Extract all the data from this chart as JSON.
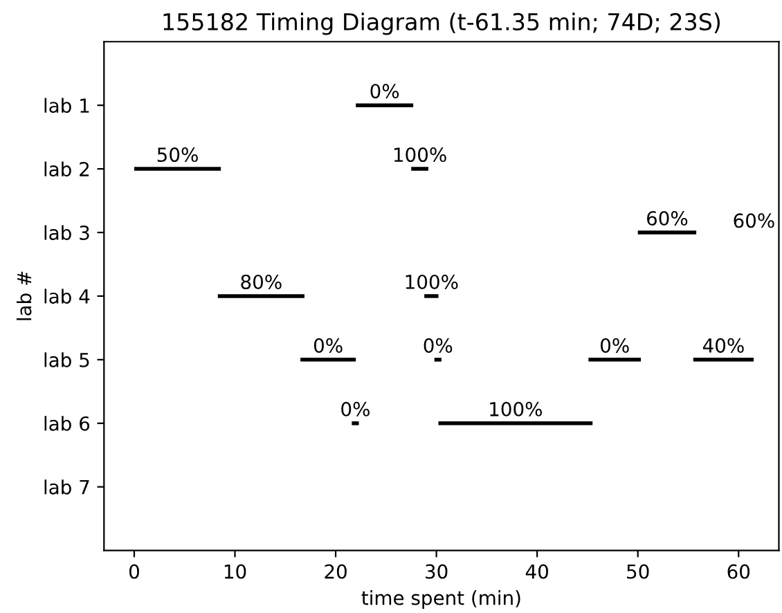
{
  "chart_data": {
    "type": "bar",
    "orientation": "horizontal",
    "title": "155182 Timing Diagram (t-61.35 min; 74D; 23S)",
    "xlabel": "time spent (min)",
    "ylabel": "lab #",
    "categories": [
      "lab 1",
      "lab 2",
      "lab 3",
      "lab 4",
      "lab 5",
      "lab 6",
      "lab 7"
    ],
    "series": [
      {
        "color": "#000000",
        "base": [
          22.0,
          0,
          50.0,
          8.3,
          16.5,
          21.6,
          null
        ],
        "values": [
          5.7,
          8.6,
          5.8,
          8.6,
          5.5,
          0.7,
          null
        ]
      },
      {
        "color": "#000000",
        "base": [
          null,
          27.5,
          null,
          28.8,
          29.8,
          30.2,
          null
        ],
        "values": [
          null,
          1.7,
          null,
          1.4,
          0.7,
          15.3,
          null
        ]
      },
      {
        "color": "#000000",
        "base": [
          null,
          null,
          null,
          null,
          45.1,
          null,
          null
        ],
        "values": [
          null,
          null,
          null,
          null,
          5.2,
          null,
          null
        ]
      },
      {
        "color": "#000000",
        "base": [
          null,
          null,
          null,
          null,
          55.5,
          null,
          null
        ],
        "values": [
          null,
          null,
          null,
          null,
          6.0,
          null,
          null
        ]
      }
    ],
    "annotations": [
      {
        "text": "0%",
        "x": 24.85,
        "y": "lab 1"
      },
      {
        "text": "50%",
        "x": 4.3,
        "y": "lab 2"
      },
      {
        "text": "100%",
        "x": 28.35,
        "y": "lab 2"
      },
      {
        "text": "60%",
        "x": 52.9,
        "y": "lab 3"
      },
      "60%",
      {
        "text": "80%",
        "x": 12.6,
        "y": "lab 4"
      },
      {
        "text": "100%",
        "x": 29.5,
        "y": "lab 4"
      },
      {
        "text": "0%",
        "x": 19.25,
        "y": "lab 5"
      },
      {
        "text": "0%",
        "x": 30.15,
        "y": "lab 5"
      },
      {
        "text": "0%",
        "x": 47.7,
        "y": "lab 5"
      },
      {
        "text": "40%",
        "x": 58.5,
        "y": "lab 5"
      },
      {
        "text": "0%",
        "x": 21.95,
        "y": "lab 6"
      },
      {
        "text": "100%",
        "x": 37.85,
        "y": "lab 6"
      }
    ],
    "xlim": [
      -3,
      64
    ],
    "xticks": [
      0,
      10,
      20,
      30,
      40,
      50,
      60
    ],
    "grid": false,
    "legend": false
  }
}
